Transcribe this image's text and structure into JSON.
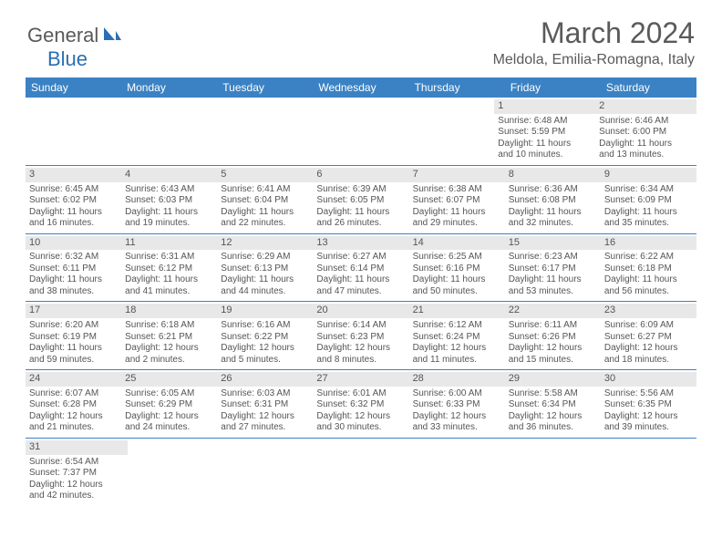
{
  "logo": {
    "part1": "General",
    "part2": "Blue"
  },
  "title": "March 2024",
  "location": "Meldola, Emilia-Romagna, Italy",
  "colors": {
    "header_bar": "#3b82c4",
    "day_num_bg": "#e8e8e8",
    "text": "#555555",
    "logo_blue": "#2a6fb5"
  },
  "dow": [
    "Sunday",
    "Monday",
    "Tuesday",
    "Wednesday",
    "Thursday",
    "Friday",
    "Saturday"
  ],
  "weeks": [
    [
      null,
      null,
      null,
      null,
      null,
      {
        "num": "1",
        "sunrise": "Sunrise: 6:48 AM",
        "sunset": "Sunset: 5:59 PM",
        "day1": "Daylight: 11 hours",
        "day2": "and 10 minutes."
      },
      {
        "num": "2",
        "sunrise": "Sunrise: 6:46 AM",
        "sunset": "Sunset: 6:00 PM",
        "day1": "Daylight: 11 hours",
        "day2": "and 13 minutes."
      }
    ],
    [
      {
        "num": "3",
        "sunrise": "Sunrise: 6:45 AM",
        "sunset": "Sunset: 6:02 PM",
        "day1": "Daylight: 11 hours",
        "day2": "and 16 minutes."
      },
      {
        "num": "4",
        "sunrise": "Sunrise: 6:43 AM",
        "sunset": "Sunset: 6:03 PM",
        "day1": "Daylight: 11 hours",
        "day2": "and 19 minutes."
      },
      {
        "num": "5",
        "sunrise": "Sunrise: 6:41 AM",
        "sunset": "Sunset: 6:04 PM",
        "day1": "Daylight: 11 hours",
        "day2": "and 22 minutes."
      },
      {
        "num": "6",
        "sunrise": "Sunrise: 6:39 AM",
        "sunset": "Sunset: 6:05 PM",
        "day1": "Daylight: 11 hours",
        "day2": "and 26 minutes."
      },
      {
        "num": "7",
        "sunrise": "Sunrise: 6:38 AM",
        "sunset": "Sunset: 6:07 PM",
        "day1": "Daylight: 11 hours",
        "day2": "and 29 minutes."
      },
      {
        "num": "8",
        "sunrise": "Sunrise: 6:36 AM",
        "sunset": "Sunset: 6:08 PM",
        "day1": "Daylight: 11 hours",
        "day2": "and 32 minutes."
      },
      {
        "num": "9",
        "sunrise": "Sunrise: 6:34 AM",
        "sunset": "Sunset: 6:09 PM",
        "day1": "Daylight: 11 hours",
        "day2": "and 35 minutes."
      }
    ],
    [
      {
        "num": "10",
        "sunrise": "Sunrise: 6:32 AM",
        "sunset": "Sunset: 6:11 PM",
        "day1": "Daylight: 11 hours",
        "day2": "and 38 minutes."
      },
      {
        "num": "11",
        "sunrise": "Sunrise: 6:31 AM",
        "sunset": "Sunset: 6:12 PM",
        "day1": "Daylight: 11 hours",
        "day2": "and 41 minutes."
      },
      {
        "num": "12",
        "sunrise": "Sunrise: 6:29 AM",
        "sunset": "Sunset: 6:13 PM",
        "day1": "Daylight: 11 hours",
        "day2": "and 44 minutes."
      },
      {
        "num": "13",
        "sunrise": "Sunrise: 6:27 AM",
        "sunset": "Sunset: 6:14 PM",
        "day1": "Daylight: 11 hours",
        "day2": "and 47 minutes."
      },
      {
        "num": "14",
        "sunrise": "Sunrise: 6:25 AM",
        "sunset": "Sunset: 6:16 PM",
        "day1": "Daylight: 11 hours",
        "day2": "and 50 minutes."
      },
      {
        "num": "15",
        "sunrise": "Sunrise: 6:23 AM",
        "sunset": "Sunset: 6:17 PM",
        "day1": "Daylight: 11 hours",
        "day2": "and 53 minutes."
      },
      {
        "num": "16",
        "sunrise": "Sunrise: 6:22 AM",
        "sunset": "Sunset: 6:18 PM",
        "day1": "Daylight: 11 hours",
        "day2": "and 56 minutes."
      }
    ],
    [
      {
        "num": "17",
        "sunrise": "Sunrise: 6:20 AM",
        "sunset": "Sunset: 6:19 PM",
        "day1": "Daylight: 11 hours",
        "day2": "and 59 minutes."
      },
      {
        "num": "18",
        "sunrise": "Sunrise: 6:18 AM",
        "sunset": "Sunset: 6:21 PM",
        "day1": "Daylight: 12 hours",
        "day2": "and 2 minutes."
      },
      {
        "num": "19",
        "sunrise": "Sunrise: 6:16 AM",
        "sunset": "Sunset: 6:22 PM",
        "day1": "Daylight: 12 hours",
        "day2": "and 5 minutes."
      },
      {
        "num": "20",
        "sunrise": "Sunrise: 6:14 AM",
        "sunset": "Sunset: 6:23 PM",
        "day1": "Daylight: 12 hours",
        "day2": "and 8 minutes."
      },
      {
        "num": "21",
        "sunrise": "Sunrise: 6:12 AM",
        "sunset": "Sunset: 6:24 PM",
        "day1": "Daylight: 12 hours",
        "day2": "and 11 minutes."
      },
      {
        "num": "22",
        "sunrise": "Sunrise: 6:11 AM",
        "sunset": "Sunset: 6:26 PM",
        "day1": "Daylight: 12 hours",
        "day2": "and 15 minutes."
      },
      {
        "num": "23",
        "sunrise": "Sunrise: 6:09 AM",
        "sunset": "Sunset: 6:27 PM",
        "day1": "Daylight: 12 hours",
        "day2": "and 18 minutes."
      }
    ],
    [
      {
        "num": "24",
        "sunrise": "Sunrise: 6:07 AM",
        "sunset": "Sunset: 6:28 PM",
        "day1": "Daylight: 12 hours",
        "day2": "and 21 minutes."
      },
      {
        "num": "25",
        "sunrise": "Sunrise: 6:05 AM",
        "sunset": "Sunset: 6:29 PM",
        "day1": "Daylight: 12 hours",
        "day2": "and 24 minutes."
      },
      {
        "num": "26",
        "sunrise": "Sunrise: 6:03 AM",
        "sunset": "Sunset: 6:31 PM",
        "day1": "Daylight: 12 hours",
        "day2": "and 27 minutes."
      },
      {
        "num": "27",
        "sunrise": "Sunrise: 6:01 AM",
        "sunset": "Sunset: 6:32 PM",
        "day1": "Daylight: 12 hours",
        "day2": "and 30 minutes."
      },
      {
        "num": "28",
        "sunrise": "Sunrise: 6:00 AM",
        "sunset": "Sunset: 6:33 PM",
        "day1": "Daylight: 12 hours",
        "day2": "and 33 minutes."
      },
      {
        "num": "29",
        "sunrise": "Sunrise: 5:58 AM",
        "sunset": "Sunset: 6:34 PM",
        "day1": "Daylight: 12 hours",
        "day2": "and 36 minutes."
      },
      {
        "num": "30",
        "sunrise": "Sunrise: 5:56 AM",
        "sunset": "Sunset: 6:35 PM",
        "day1": "Daylight: 12 hours",
        "day2": "and 39 minutes."
      }
    ],
    [
      {
        "num": "31",
        "sunrise": "Sunrise: 6:54 AM",
        "sunset": "Sunset: 7:37 PM",
        "day1": "Daylight: 12 hours",
        "day2": "and 42 minutes."
      },
      null,
      null,
      null,
      null,
      null,
      null
    ]
  ]
}
